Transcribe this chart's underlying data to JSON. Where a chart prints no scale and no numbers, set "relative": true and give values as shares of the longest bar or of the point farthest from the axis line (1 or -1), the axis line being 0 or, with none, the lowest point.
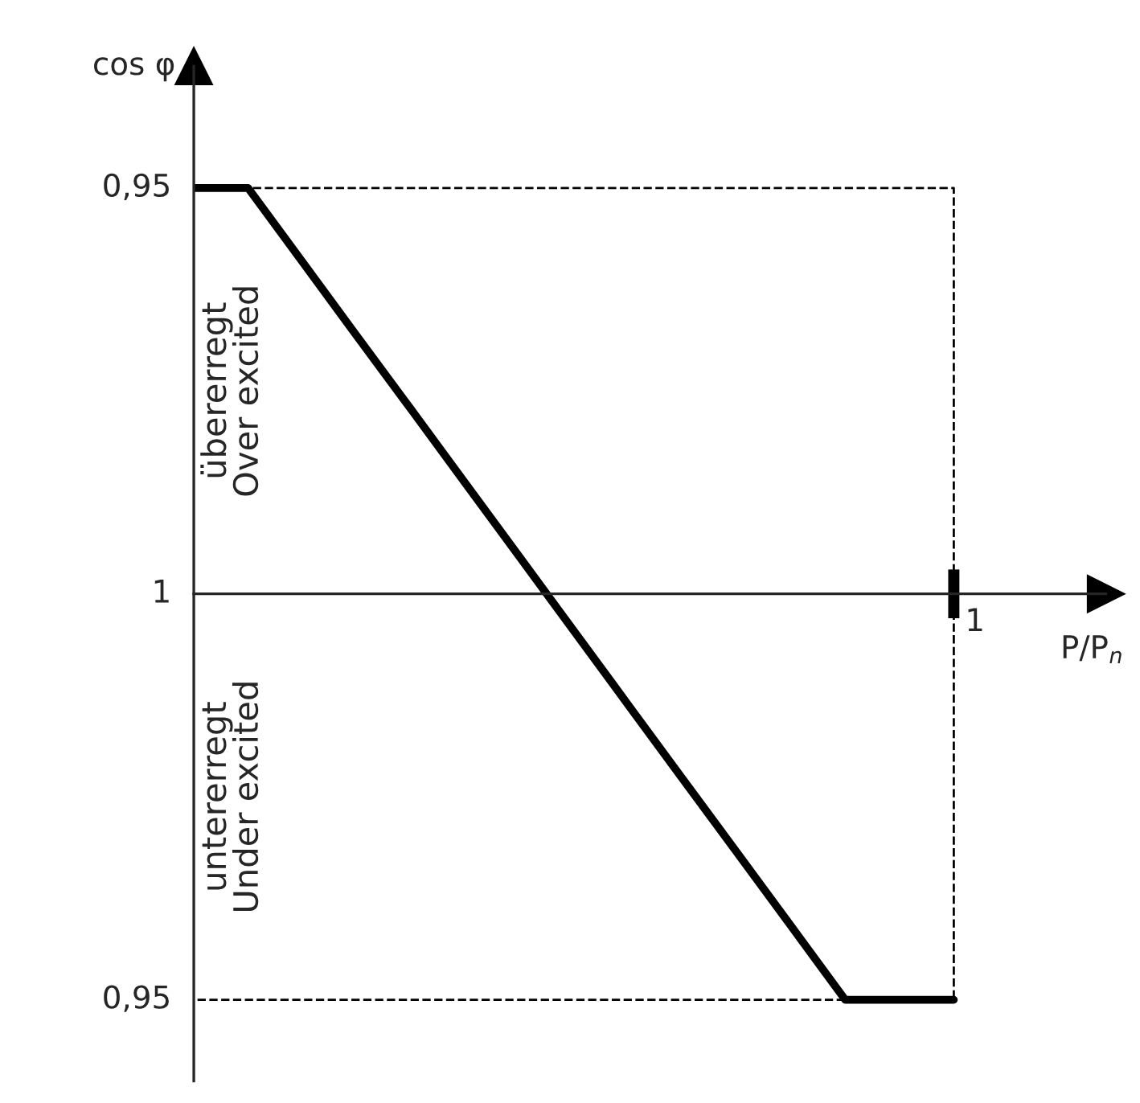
{
  "chart_data": {
    "type": "line",
    "xlabel": "P/P$_{n}$",
    "ylabel": "cos φ",
    "relative": true,
    "categories": [
      null,
      null,
      null,
      null,
      null,
      null,
      null,
      null,
      null,
      null,
      null,
      null,
      null,
      null,
      null
    ],
    "marker": "none",
    "line_style": "solid",
    "series": [
      {
        "color": "#000000",
        "values": [
          1,
          1,
          0.818,
          0.636,
          0.455,
          0.273,
          0.091,
          -0.091,
          -0.273,
          -0.455,
          -0.636,
          -0.818,
          -1,
          -1,
          -1
        ]
      }
    ],
    "annotations": [
      "übererregt",
      "Over excited",
      "untererregt",
      "Under excited",
      "0,95",
      "1",
      "0,95",
      "1"
    ]
  }
}
